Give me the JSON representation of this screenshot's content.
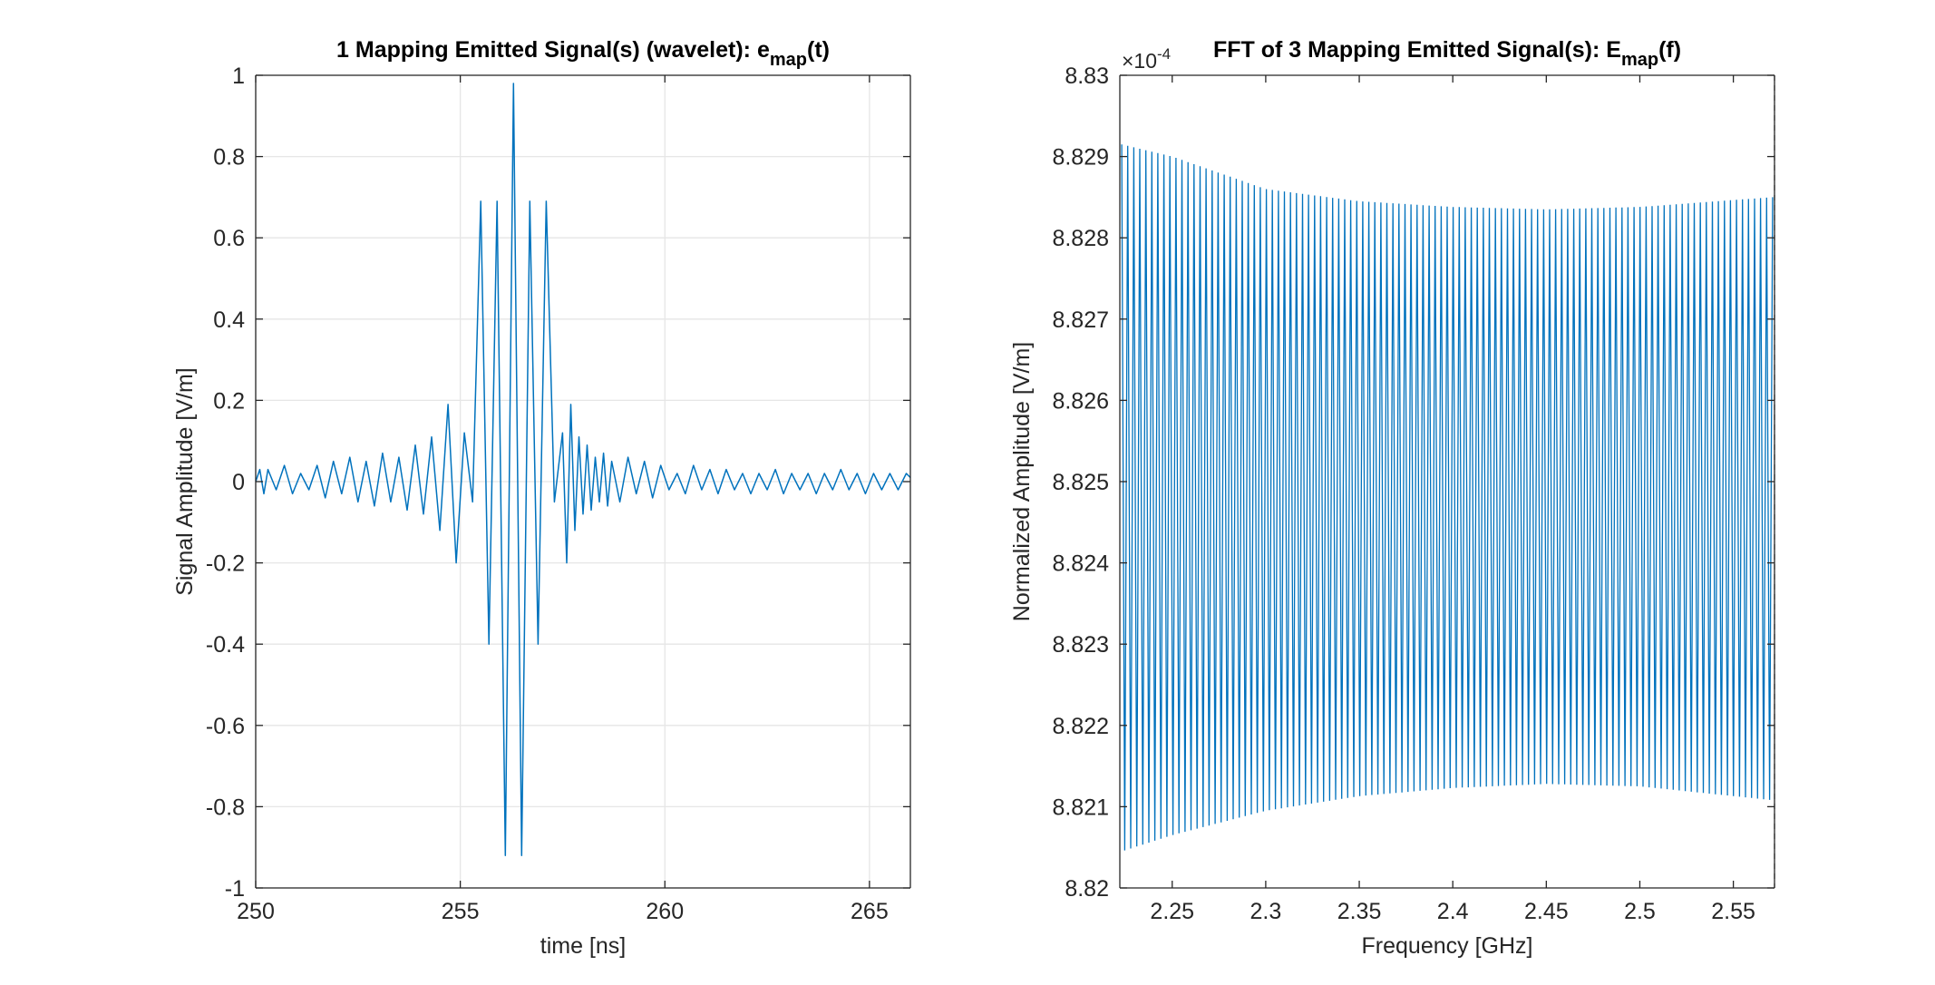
{
  "chart_data": [
    {
      "type": "line",
      "title_main": "1 Mapping Emitted Signal(s) (wavelet): e",
      "title_sub": "map",
      "title_tail": "(t)",
      "xlabel": "time [ns]",
      "ylabel": "Signal Amplitude [V/m]",
      "xlim": [
        250,
        266
      ],
      "ylim": [
        -1,
        1
      ],
      "xticks": [
        250,
        255,
        260,
        265
      ],
      "xtick_labels": [
        "250",
        "255",
        "260",
        "265"
      ],
      "yticks": [
        1,
        0.8,
        0.6,
        0.4,
        0.2,
        0,
        -0.2,
        -0.4,
        -0.6,
        -0.8,
        -1
      ],
      "ytick_labels": [
        "1",
        "0.8",
        "0.6",
        "0.4",
        "0.2",
        "0",
        "-0.2",
        "-0.4",
        "-0.6",
        "-0.8",
        "-1"
      ],
      "grid": true,
      "series": [
        {
          "color": "#0072bd",
          "x": [
            250.0,
            250.1,
            250.2,
            250.3,
            250.5,
            250.7,
            250.9,
            251.1,
            251.3,
            251.5,
            251.7,
            251.9,
            252.1,
            252.3,
            252.5,
            252.7,
            252.9,
            253.1,
            253.3,
            253.5,
            253.7,
            253.9,
            254.1,
            254.3,
            254.5,
            254.7,
            254.9,
            255.1,
            255.3,
            255.5,
            255.7,
            255.9,
            256.1,
            256.3,
            256.5,
            256.7,
            256.9,
            257.1,
            257.3,
            257.5,
            257.6,
            257.7,
            257.8,
            257.9,
            258.0,
            258.1,
            258.2,
            258.3,
            258.4,
            258.5,
            258.6,
            258.7,
            258.9,
            259.1,
            259.3,
            259.5,
            259.7,
            259.9,
            260.1,
            260.3,
            260.5,
            260.7,
            260.9,
            261.1,
            261.3,
            261.5,
            261.7,
            261.9,
            262.1,
            262.3,
            262.5,
            262.7,
            262.9,
            263.1,
            263.3,
            263.5,
            263.7,
            263.9,
            264.1,
            264.3,
            264.5,
            264.7,
            264.9,
            265.1,
            265.3,
            265.5,
            265.7,
            265.9,
            266.0
          ],
          "y": [
            0.0,
            0.03,
            -0.03,
            0.03,
            -0.02,
            0.04,
            -0.03,
            0.02,
            -0.02,
            0.04,
            -0.04,
            0.05,
            -0.03,
            0.06,
            -0.05,
            0.05,
            -0.06,
            0.07,
            -0.05,
            0.06,
            -0.07,
            0.09,
            -0.08,
            0.11,
            -0.12,
            0.19,
            -0.2,
            0.12,
            -0.05,
            0.69,
            -0.4,
            0.69,
            -0.92,
            0.98,
            -0.92,
            0.69,
            -0.4,
            0.69,
            -0.05,
            0.12,
            -0.2,
            0.19,
            -0.12,
            0.11,
            -0.08,
            0.09,
            -0.07,
            0.06,
            -0.05,
            0.07,
            -0.06,
            0.05,
            -0.05,
            0.06,
            -0.03,
            0.05,
            -0.04,
            0.04,
            -0.02,
            0.02,
            -0.03,
            0.04,
            -0.02,
            0.03,
            -0.03,
            0.03,
            -0.02,
            0.02,
            -0.03,
            0.02,
            -0.02,
            0.03,
            -0.03,
            0.02,
            -0.02,
            0.02,
            -0.03,
            0.02,
            -0.02,
            0.03,
            -0.02,
            0.02,
            -0.03,
            0.02,
            -0.02,
            0.02,
            -0.02,
            0.02,
            0.01
          ]
        }
      ]
    },
    {
      "type": "line",
      "title_main": "FFT of 3 Mapping Emitted Signal(s): E",
      "title_sub": "map",
      "title_tail": "(f)",
      "exponent_base": "×10",
      "exponent_power": "-4",
      "xlabel": "Frequency [GHz]",
      "ylabel": "Normalized Amplitude [V/m]",
      "xlim": [
        2.222,
        2.572
      ],
      "ylim": [
        8.82,
        8.83
      ],
      "xticks": [
        2.25,
        2.3,
        2.35,
        2.4,
        2.45,
        2.5,
        2.55
      ],
      "xtick_labels": [
        "2.25",
        "2.3",
        "2.35",
        "2.4",
        "2.45",
        "2.5",
        "2.55"
      ],
      "yticks": [
        8.83,
        8.829,
        8.828,
        8.827,
        8.826,
        8.825,
        8.824,
        8.823,
        8.822,
        8.821,
        8.82
      ],
      "ytick_labels": [
        "8.83",
        "8.829",
        "8.828",
        "8.827",
        "8.826",
        "8.825",
        "8.824",
        "8.823",
        "8.822",
        "8.821",
        "8.82"
      ],
      "grid": false,
      "series": [
        {
          "color": "#0072bd",
          "description_points": "oscillating signal between envelope curves",
          "x_start": 2.223,
          "x_end": 2.571,
          "oscillations": 108,
          "upper_envelope": [
            [
              2.223,
              8.82915
            ],
            [
              2.25,
              8.829
            ],
            [
              2.3,
              8.8286
            ],
            [
              2.35,
              8.82845
            ],
            [
              2.4,
              8.82838
            ],
            [
              2.45,
              8.82835
            ],
            [
              2.5,
              8.82838
            ],
            [
              2.571,
              8.8285
            ]
          ],
          "lower_envelope": [
            [
              2.223,
              8.82045
            ],
            [
              2.25,
              8.82065
            ],
            [
              2.3,
              8.82095
            ],
            [
              2.35,
              8.82113
            ],
            [
              2.4,
              8.82123
            ],
            [
              2.45,
              8.82128
            ],
            [
              2.5,
              8.82125
            ],
            [
              2.571,
              8.82108
            ]
          ]
        }
      ]
    }
  ]
}
